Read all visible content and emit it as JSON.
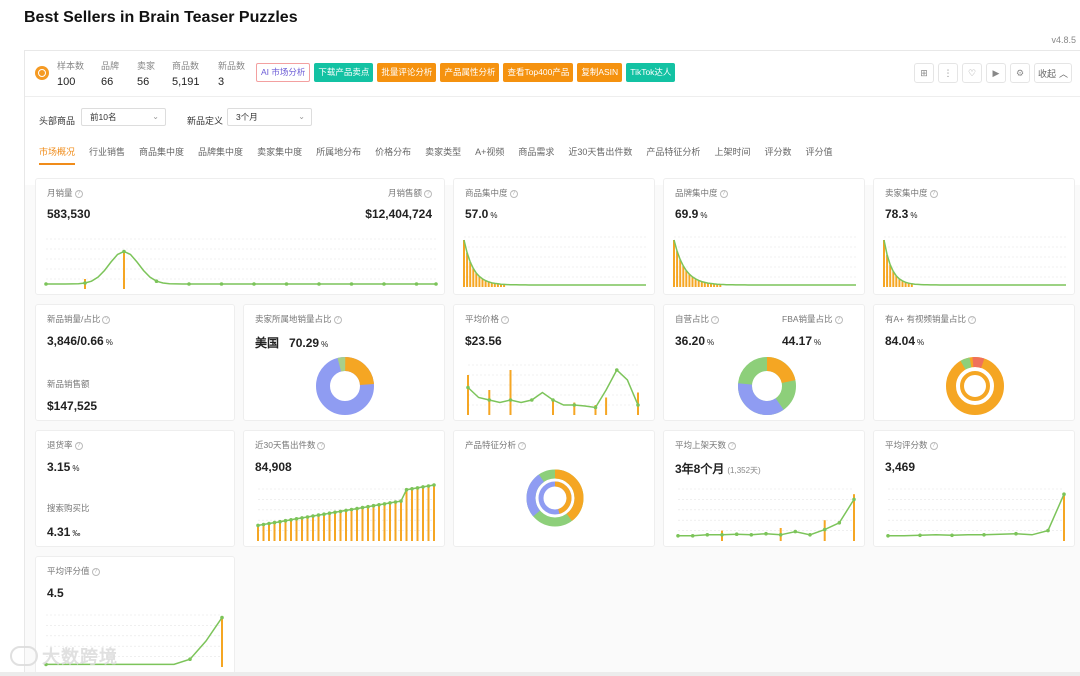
{
  "page": {
    "title": "Best Sellers in Brain Teaser Puzzles",
    "version": "v4.8.5"
  },
  "stats": [
    {
      "label": "样本数",
      "value": "100"
    },
    {
      "label": "品牌",
      "value": "66"
    },
    {
      "label": "卖家",
      "value": "56"
    },
    {
      "label": "商品数",
      "value": "5,191"
    },
    {
      "label": "新品数",
      "value": "3"
    }
  ],
  "action_buttons": [
    {
      "label": "AI 市场分析",
      "style": "ai"
    },
    {
      "label": "下载产品卖点",
      "style": "teal"
    },
    {
      "label": "批量评论分析",
      "style": "orange"
    },
    {
      "label": "产品属性分析",
      "style": "orange"
    },
    {
      "label": "查看Top400产品",
      "style": "orange"
    },
    {
      "label": "复制ASIN",
      "style": "orange"
    },
    {
      "label": "TikTok达人",
      "style": "teal"
    }
  ],
  "toolbar_icons": [
    "grid-icon",
    "more-icon",
    "heart-icon",
    "video-icon",
    "settings-icon"
  ],
  "collapse_label": "收起",
  "filters": {
    "head_label": "头部商品",
    "head_value": "前10名",
    "new_label": "新品定义",
    "new_value": "3个月"
  },
  "tabs": [
    "市场概况",
    "行业销售",
    "商品集中度",
    "品牌集中度",
    "卖家集中度",
    "所属地分布",
    "价格分布",
    "卖家类型",
    "A+视频",
    "商品需求",
    "近30天售出件数",
    "产品特征分析",
    "上架时间",
    "评分数",
    "评分值"
  ],
  "cards": {
    "monthly_sales": {
      "label": "月销量",
      "value": "583,530",
      "revenue_label": "月销售额",
      "revenue_value": "$12,404,724"
    },
    "product_concentration": {
      "label": "商品集中度",
      "value": "57.0",
      "unit": "%"
    },
    "brand_concentration": {
      "label": "品牌集中度",
      "value": "69.9",
      "unit": "%"
    },
    "seller_concentration": {
      "label": "卖家集中度",
      "value": "78.3",
      "unit": "%"
    },
    "new_sales": {
      "label": "新品销量/占比",
      "value": "3,846/0.66",
      "unit": "%",
      "revenue_label": "新品销售额",
      "revenue_value": "$147,525"
    },
    "seller_location": {
      "label": "卖家所属地销量占比",
      "country": "美国",
      "value": "70.29",
      "unit": "%"
    },
    "avg_price": {
      "label": "平均价格",
      "value": "$23.56"
    },
    "self_ops": {
      "label": "自营占比",
      "value": "36.20",
      "unit": "%",
      "fba_label": "FBA销量占比",
      "fba_value": "44.17",
      "fba_unit": "%"
    },
    "aplus": {
      "label": "有A+ 有视频销量占比",
      "value": "84.04",
      "unit": "%"
    },
    "return_rate": {
      "label": "退货率",
      "value": "3.15",
      "unit": "%",
      "search_label": "搜索购买比",
      "search_value": "4.31",
      "search_unit": "‰"
    },
    "sold_30d": {
      "label": "近30天售出件数",
      "value": "84,908"
    },
    "feature_analysis": {
      "label": "产品特征分析"
    },
    "avg_listing_days": {
      "label": "平均上架天数",
      "value": "3年8个月",
      "sub": "(1,352天)"
    },
    "avg_review_count": {
      "label": "平均评分数",
      "value": "3,469"
    },
    "avg_rating": {
      "label": "平均评分值",
      "value": "4.5"
    }
  },
  "colors": {
    "accent": "#f08c1a",
    "line": "#7cc45a",
    "bar": "#f5a623",
    "donut_blue": "#8f9cf2",
    "donut_green": "#8dcf7a",
    "donut_orange": "#f5a623",
    "donut_red": "#f0715a"
  },
  "watermark": "大数跨境"
}
